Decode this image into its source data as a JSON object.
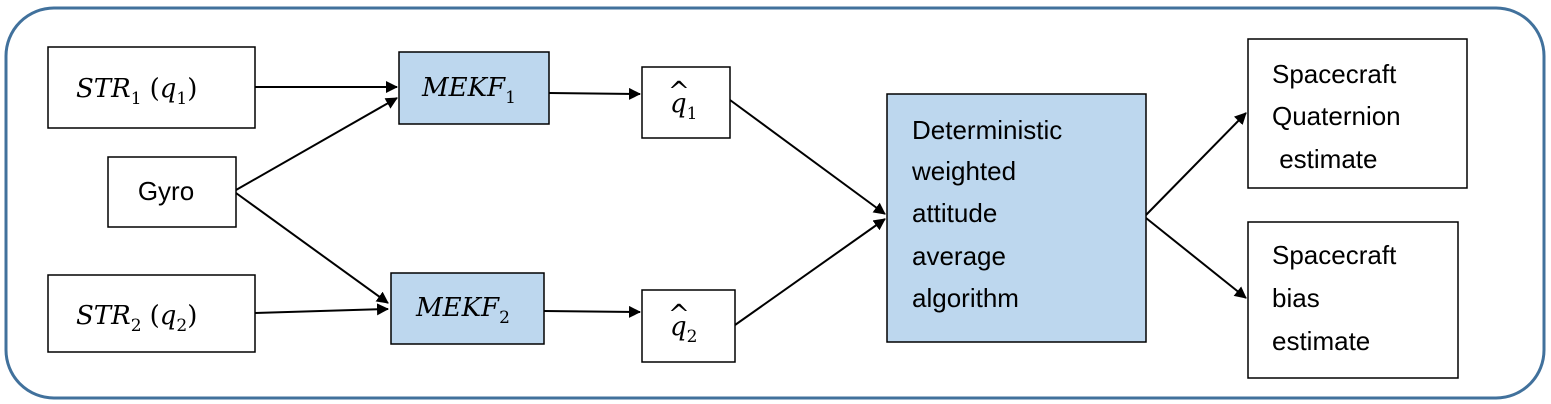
{
  "colors": {
    "frame": "#41719c",
    "box_fill_plain": "#ffffff",
    "box_fill_highlight": "#bdd7ee",
    "stroke": "#000000"
  },
  "nodes": {
    "str1": {
      "main": "STR",
      "sub": "1",
      "paren_var": "q",
      "paren_sub": "1"
    },
    "str2": {
      "main": "STR",
      "sub": "2",
      "paren_var": "q",
      "paren_sub": "2"
    },
    "gyro": {
      "label": "Gyro"
    },
    "mekf1": {
      "main": "MEKF",
      "sub": "1"
    },
    "mekf2": {
      "main": "MEKF",
      "sub": "2"
    },
    "qhat1": {
      "hat": "^",
      "var": "q",
      "sub": "1"
    },
    "qhat2": {
      "hat": "^",
      "var": "q",
      "sub": "2"
    },
    "averager": {
      "lines": [
        "Deterministic",
        "weighted",
        "attitude",
        "average",
        "algorithm"
      ]
    },
    "quat_out": {
      "lines": [
        "Spacecraft",
        "Quaternion",
        " estimate"
      ]
    },
    "bias_out": {
      "lines": [
        "Spacecraft",
        "bias",
        "estimate"
      ]
    }
  }
}
